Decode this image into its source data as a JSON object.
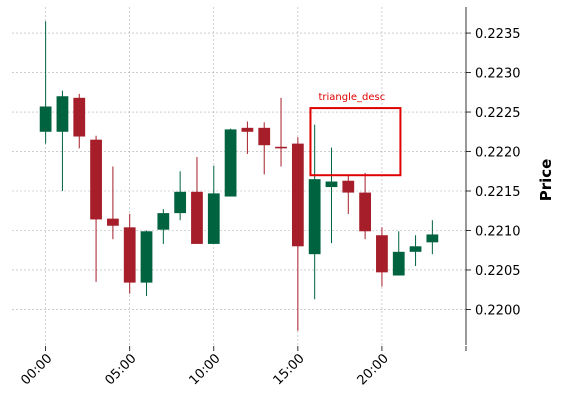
{
  "chart_data": {
    "type": "candlestick",
    "ylabel": "Price",
    "ylim": [
      0.21955,
      0.22383
    ],
    "grid": true,
    "y_ticks": [
      0.22,
      0.2205,
      0.221,
      0.2215,
      0.222,
      0.2225,
      0.223,
      0.2235
    ],
    "y_tick_labels": [
      "0.2200",
      "0.2205",
      "0.2210",
      "0.2215",
      "0.2220",
      "0.2225",
      "0.2230",
      "0.2235"
    ],
    "x_ticks": [
      0,
      5,
      10,
      15,
      20,
      25
    ],
    "x_tick_labels": [
      "00:00",
      "05:00",
      "10:00",
      "15:00",
      "20:00",
      ""
    ],
    "colors": {
      "up": "#006340",
      "down": "#a51e2a",
      "annotation": "#e00000",
      "grid": "#b0b0b0"
    },
    "candles": [
      {
        "x": 0,
        "open": 0.22225,
        "high": 0.22365,
        "low": 0.2221,
        "close": 0.22257
      },
      {
        "x": 1,
        "open": 0.22225,
        "high": 0.22277,
        "low": 0.2215,
        "close": 0.2227
      },
      {
        "x": 2,
        "open": 0.22268,
        "high": 0.22273,
        "low": 0.22204,
        "close": 0.22219
      },
      {
        "x": 3,
        "open": 0.22215,
        "high": 0.2222,
        "low": 0.22035,
        "close": 0.22114
      },
      {
        "x": 4,
        "open": 0.22115,
        "high": 0.22181,
        "low": 0.22089,
        "close": 0.22106
      },
      {
        "x": 5,
        "open": 0.22104,
        "high": 0.22121,
        "low": 0.2202,
        "close": 0.22034
      },
      {
        "x": 6,
        "open": 0.22034,
        "high": 0.221,
        "low": 0.22017,
        "close": 0.22099
      },
      {
        "x": 7,
        "open": 0.22101,
        "high": 0.22127,
        "low": 0.22083,
        "close": 0.22122
      },
      {
        "x": 8,
        "open": 0.22122,
        "high": 0.22175,
        "low": 0.22113,
        "close": 0.22149
      },
      {
        "x": 9,
        "open": 0.22149,
        "high": 0.22193,
        "low": 0.22083,
        "close": 0.22083
      },
      {
        "x": 10,
        "open": 0.22083,
        "high": 0.22182,
        "low": 0.22083,
        "close": 0.22147
      },
      {
        "x": 11,
        "open": 0.22143,
        "high": 0.22229,
        "low": 0.22143,
        "close": 0.22228
      },
      {
        "x": 12,
        "open": 0.2223,
        "high": 0.22238,
        "low": 0.22197,
        "close": 0.22225
      },
      {
        "x": 13,
        "open": 0.2223,
        "high": 0.22237,
        "low": 0.22171,
        "close": 0.22208
      },
      {
        "x": 14,
        "open": 0.22206,
        "high": 0.22268,
        "low": 0.22181,
        "close": 0.22204
      },
      {
        "x": 15,
        "open": 0.2221,
        "high": 0.22218,
        "low": 0.21973,
        "close": 0.2208
      },
      {
        "x": 16,
        "open": 0.2207,
        "high": 0.22234,
        "low": 0.22013,
        "close": 0.22165
      },
      {
        "x": 17,
        "open": 0.22155,
        "high": 0.22205,
        "low": 0.22084,
        "close": 0.22162
      },
      {
        "x": 18,
        "open": 0.22163,
        "high": 0.2217,
        "low": 0.22121,
        "close": 0.22148
      },
      {
        "x": 19,
        "open": 0.22148,
        "high": 0.22173,
        "low": 0.22089,
        "close": 0.22099
      },
      {
        "x": 20,
        "open": 0.22094,
        "high": 0.22104,
        "low": 0.22029,
        "close": 0.22047
      },
      {
        "x": 21,
        "open": 0.22043,
        "high": 0.22099,
        "low": 0.22043,
        "close": 0.22073
      },
      {
        "x": 22,
        "open": 0.22073,
        "high": 0.22094,
        "low": 0.22055,
        "close": 0.2208
      },
      {
        "x": 23,
        "open": 0.22085,
        "high": 0.22113,
        "low": 0.2207,
        "close": 0.22095
      }
    ],
    "annotation": {
      "label": "triangle_desc",
      "x_start": 15.75,
      "x_end": 21.1,
      "y_low": 0.2217,
      "y_high": 0.22255
    }
  }
}
